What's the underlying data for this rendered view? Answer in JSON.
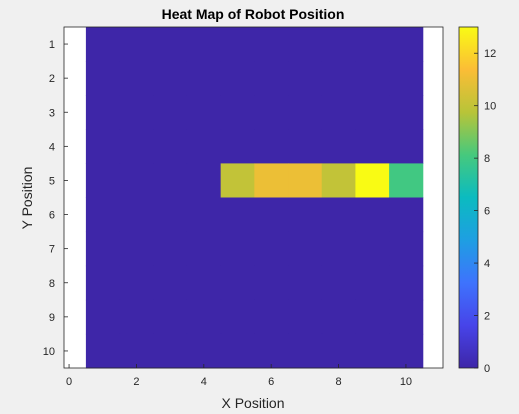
{
  "chart_data": {
    "type": "heatmap",
    "title": "Heat Map of Robot Position",
    "xlabel": "X Position",
    "ylabel": "Y Position",
    "x_axis_range": [
      -0.15,
      11.1
    ],
    "y_axis_range": [
      0.5,
      10.5
    ],
    "y_direction": "reversed",
    "x_ticks": [
      "0",
      "2",
      "4",
      "6",
      "8",
      "10"
    ],
    "y_ticks": [
      "1",
      "2",
      "3",
      "4",
      "5",
      "6",
      "7",
      "8",
      "9",
      "10"
    ],
    "x_categories": [
      1,
      2,
      3,
      4,
      5,
      6,
      7,
      8,
      9,
      10
    ],
    "y_categories": [
      1,
      2,
      3,
      4,
      5,
      6,
      7,
      8,
      9,
      10
    ],
    "values": [
      [
        0,
        0,
        0,
        0,
        0,
        0,
        0,
        0,
        0,
        0
      ],
      [
        0,
        0,
        0,
        0,
        0,
        0,
        0,
        0,
        0,
        0
      ],
      [
        0,
        0,
        0,
        0,
        0,
        0,
        0,
        0,
        0,
        0
      ],
      [
        0,
        0,
        0,
        0,
        0,
        0,
        0,
        0,
        0,
        0
      ],
      [
        0,
        0,
        0,
        0,
        10,
        11,
        11,
        10,
        13,
        8
      ],
      [
        0,
        0,
        0,
        0,
        0,
        0,
        0,
        0,
        0,
        0
      ],
      [
        0,
        0,
        0,
        0,
        0,
        0,
        0,
        0,
        0,
        0
      ],
      [
        0,
        0,
        0,
        0,
        0,
        0,
        0,
        0,
        0,
        0
      ],
      [
        0,
        0,
        0,
        0,
        0,
        0,
        0,
        0,
        0,
        0
      ],
      [
        0,
        0,
        0,
        0,
        0,
        0,
        0,
        0,
        0,
        0
      ]
    ],
    "colorbar": {
      "range": [
        0,
        13
      ],
      "ticks": [
        "0",
        "2",
        "4",
        "6",
        "8",
        "10",
        "12"
      ],
      "colormap": "parula"
    },
    "grid": false,
    "legend": "none"
  },
  "colors": {
    "figure_background": "#f0f0f0",
    "axes_background": "#ffffff",
    "axis_color": "#262626"
  }
}
